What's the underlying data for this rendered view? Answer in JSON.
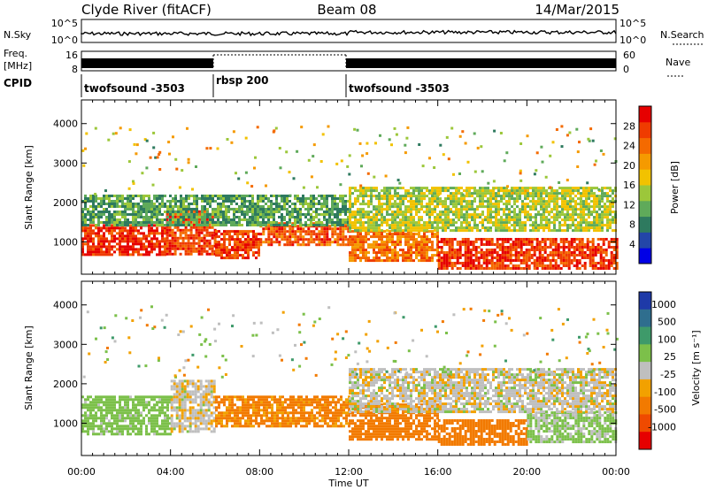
{
  "header": {
    "station": "Clyde River (fitACF)",
    "beam": "Beam 08",
    "date": "14/Mar/2015"
  },
  "nsky_panel": {
    "left_label": "N.Sky",
    "left_ticks": [
      "10^5",
      "10^0"
    ],
    "right_ticks": [
      "10^5",
      "10^0"
    ],
    "right_label": "N.Search"
  },
  "freq_panel": {
    "left_label_line1": "Freq.",
    "left_label_line2": "[MHz]",
    "left_ticks": [
      "16",
      "8"
    ],
    "right_ticks": [
      "60",
      "0"
    ],
    "right_label": "Nave"
  },
  "cpid": {
    "label": "CPID",
    "segments": [
      {
        "name": "twofsound -3503",
        "start_hour": 0,
        "end_hour": 6
      },
      {
        "name": "rbsp 200",
        "start_hour": 6,
        "end_hour": 12
      },
      {
        "name": "twofsound -3503",
        "start_hour": 12,
        "end_hour": 24
      }
    ]
  },
  "time_axis": {
    "label": "Time UT",
    "ticks": [
      "00:00",
      "04:00",
      "08:00",
      "12:00",
      "16:00",
      "20:00",
      "00:00"
    ]
  },
  "power_panel": {
    "ylabel": "Slant Range [km]",
    "yticks": [
      "1000",
      "2000",
      "3000",
      "4000"
    ],
    "colorbar_label": "Power [dB]",
    "colorbar_ticks": [
      "4",
      "8",
      "12",
      "16",
      "20",
      "24",
      "28"
    ],
    "colors": [
      "#0000e6",
      "#2346a8",
      "#2e7a5f",
      "#5faa5a",
      "#9cc73a",
      "#f2c200",
      "#f59a00",
      "#f46a00",
      "#ef3b00",
      "#e60000"
    ]
  },
  "velocity_panel": {
    "ylabel": "Slant Range [km]",
    "yticks": [
      "1000",
      "2000",
      "3000",
      "4000"
    ],
    "colorbar_label": "Velocity [m s⁻¹]",
    "colorbar_ticks": [
      "1000",
      "500",
      "100",
      "25",
      "-25",
      "-100",
      "-500",
      "-1000"
    ],
    "colors": [
      "#1e3aa8",
      "#2f6e8e",
      "#3e9a6a",
      "#7cc04a",
      "#bfbfbf",
      "#f2a100",
      "#f27a00",
      "#ef4a00",
      "#e60000"
    ]
  },
  "chart_data": {
    "type": "heatmap",
    "x_range_hours": [
      0,
      24
    ],
    "y_range_km": [
      180,
      4600
    ],
    "power": {
      "cmap_range_db": [
        0,
        30
      ],
      "bands": [
        {
          "t0": 0,
          "t1": 3.8,
          "r0": 650,
          "r1": 1450,
          "dB": 27
        },
        {
          "t0": 3.8,
          "t1": 6,
          "r0": 700,
          "r1": 1800,
          "dB": 25
        },
        {
          "t0": 6,
          "t1": 8,
          "r0": 600,
          "r1": 1300,
          "dB": 26
        },
        {
          "t0": 8,
          "t1": 12,
          "r0": 900,
          "r1": 1500,
          "dB": 24
        },
        {
          "t0": 12,
          "t1": 16,
          "r0": 500,
          "r1": 1300,
          "dB": 22
        },
        {
          "t0": 16,
          "t1": 24,
          "r0": 350,
          "r1": 1100,
          "dB": 26
        },
        {
          "t0": 0,
          "t1": 12,
          "r0": 1450,
          "r1": 2200,
          "dB": 10
        },
        {
          "t0": 12,
          "t1": 24,
          "r0": 1300,
          "r1": 2400,
          "dB": 14
        }
      ]
    },
    "velocity": {
      "bands": [
        {
          "t0": 0,
          "t1": 4,
          "r0": 700,
          "r1": 1700,
          "v": 60
        },
        {
          "t0": 4,
          "t1": 6,
          "r0": 800,
          "r1": 2100,
          "v": -10
        },
        {
          "t0": 6,
          "t1": 12,
          "r0": 900,
          "r1": 1700,
          "v": -120
        },
        {
          "t0": 12,
          "t1": 16,
          "r0": 600,
          "r1": 1500,
          "v": -150
        },
        {
          "t0": 16,
          "t1": 20,
          "r0": 450,
          "r1": 1100,
          "v": -200
        },
        {
          "t0": 20,
          "t1": 24,
          "r0": 500,
          "r1": 1300,
          "v": 40
        },
        {
          "t0": 12,
          "t1": 24,
          "r0": 1300,
          "r1": 2400,
          "v": -5
        }
      ]
    }
  }
}
